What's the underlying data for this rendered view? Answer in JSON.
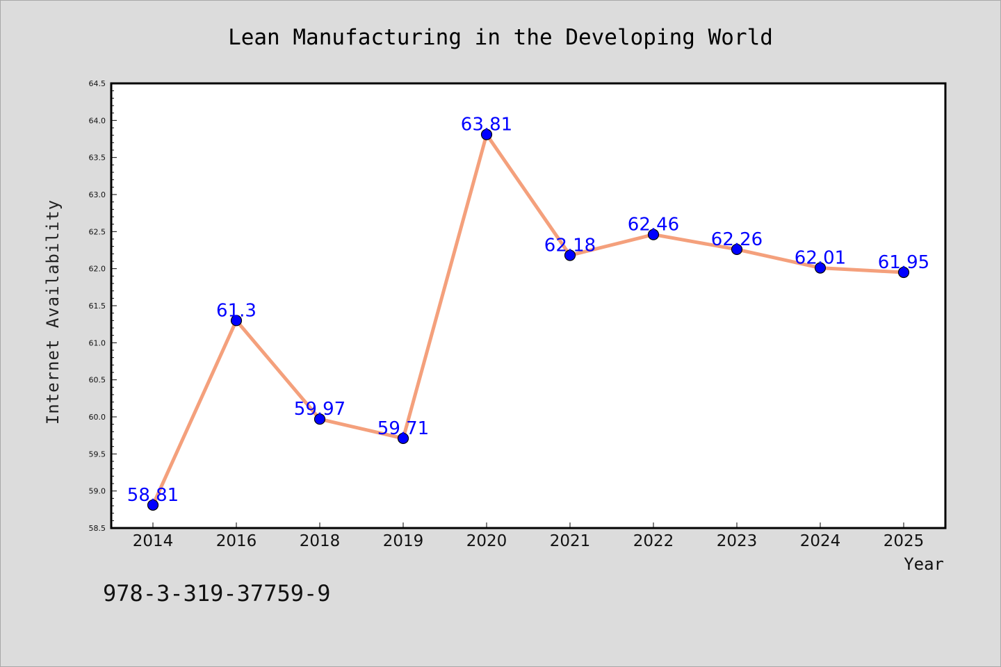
{
  "chart_data": {
    "type": "line",
    "title": "Lean Manufacturing in the Developing World",
    "xlabel": "Year",
    "ylabel": "Internet Availability",
    "categories": [
      "2014",
      "2016",
      "2018",
      "2019",
      "2020",
      "2021",
      "2022",
      "2023",
      "2024",
      "2025"
    ],
    "series": [
      {
        "values": [
          58.81,
          61.3,
          59.97,
          59.71,
          63.81,
          62.18,
          62.46,
          62.26,
          62.01,
          61.95
        ]
      }
    ],
    "data_labels": [
      "58.81",
      "61.3",
      "59.97",
      "59.71",
      "63.81",
      "62.18",
      "62.46",
      "62.26",
      "62.01",
      "61.95"
    ],
    "ylim": [
      58.5,
      64.5
    ],
    "yticks": [
      "58.5",
      "59.0",
      "59.5",
      "60.0",
      "60.5",
      "61.0",
      "61.5",
      "62.0",
      "62.5",
      "63.0",
      "63.5",
      "64.0",
      "64.5"
    ],
    "grid": false,
    "legend": "none",
    "line_color": "#f4a07c",
    "marker_color": "#0000ff",
    "label_color": "#0000ff"
  },
  "footnote": "978-3-319-37759-9"
}
